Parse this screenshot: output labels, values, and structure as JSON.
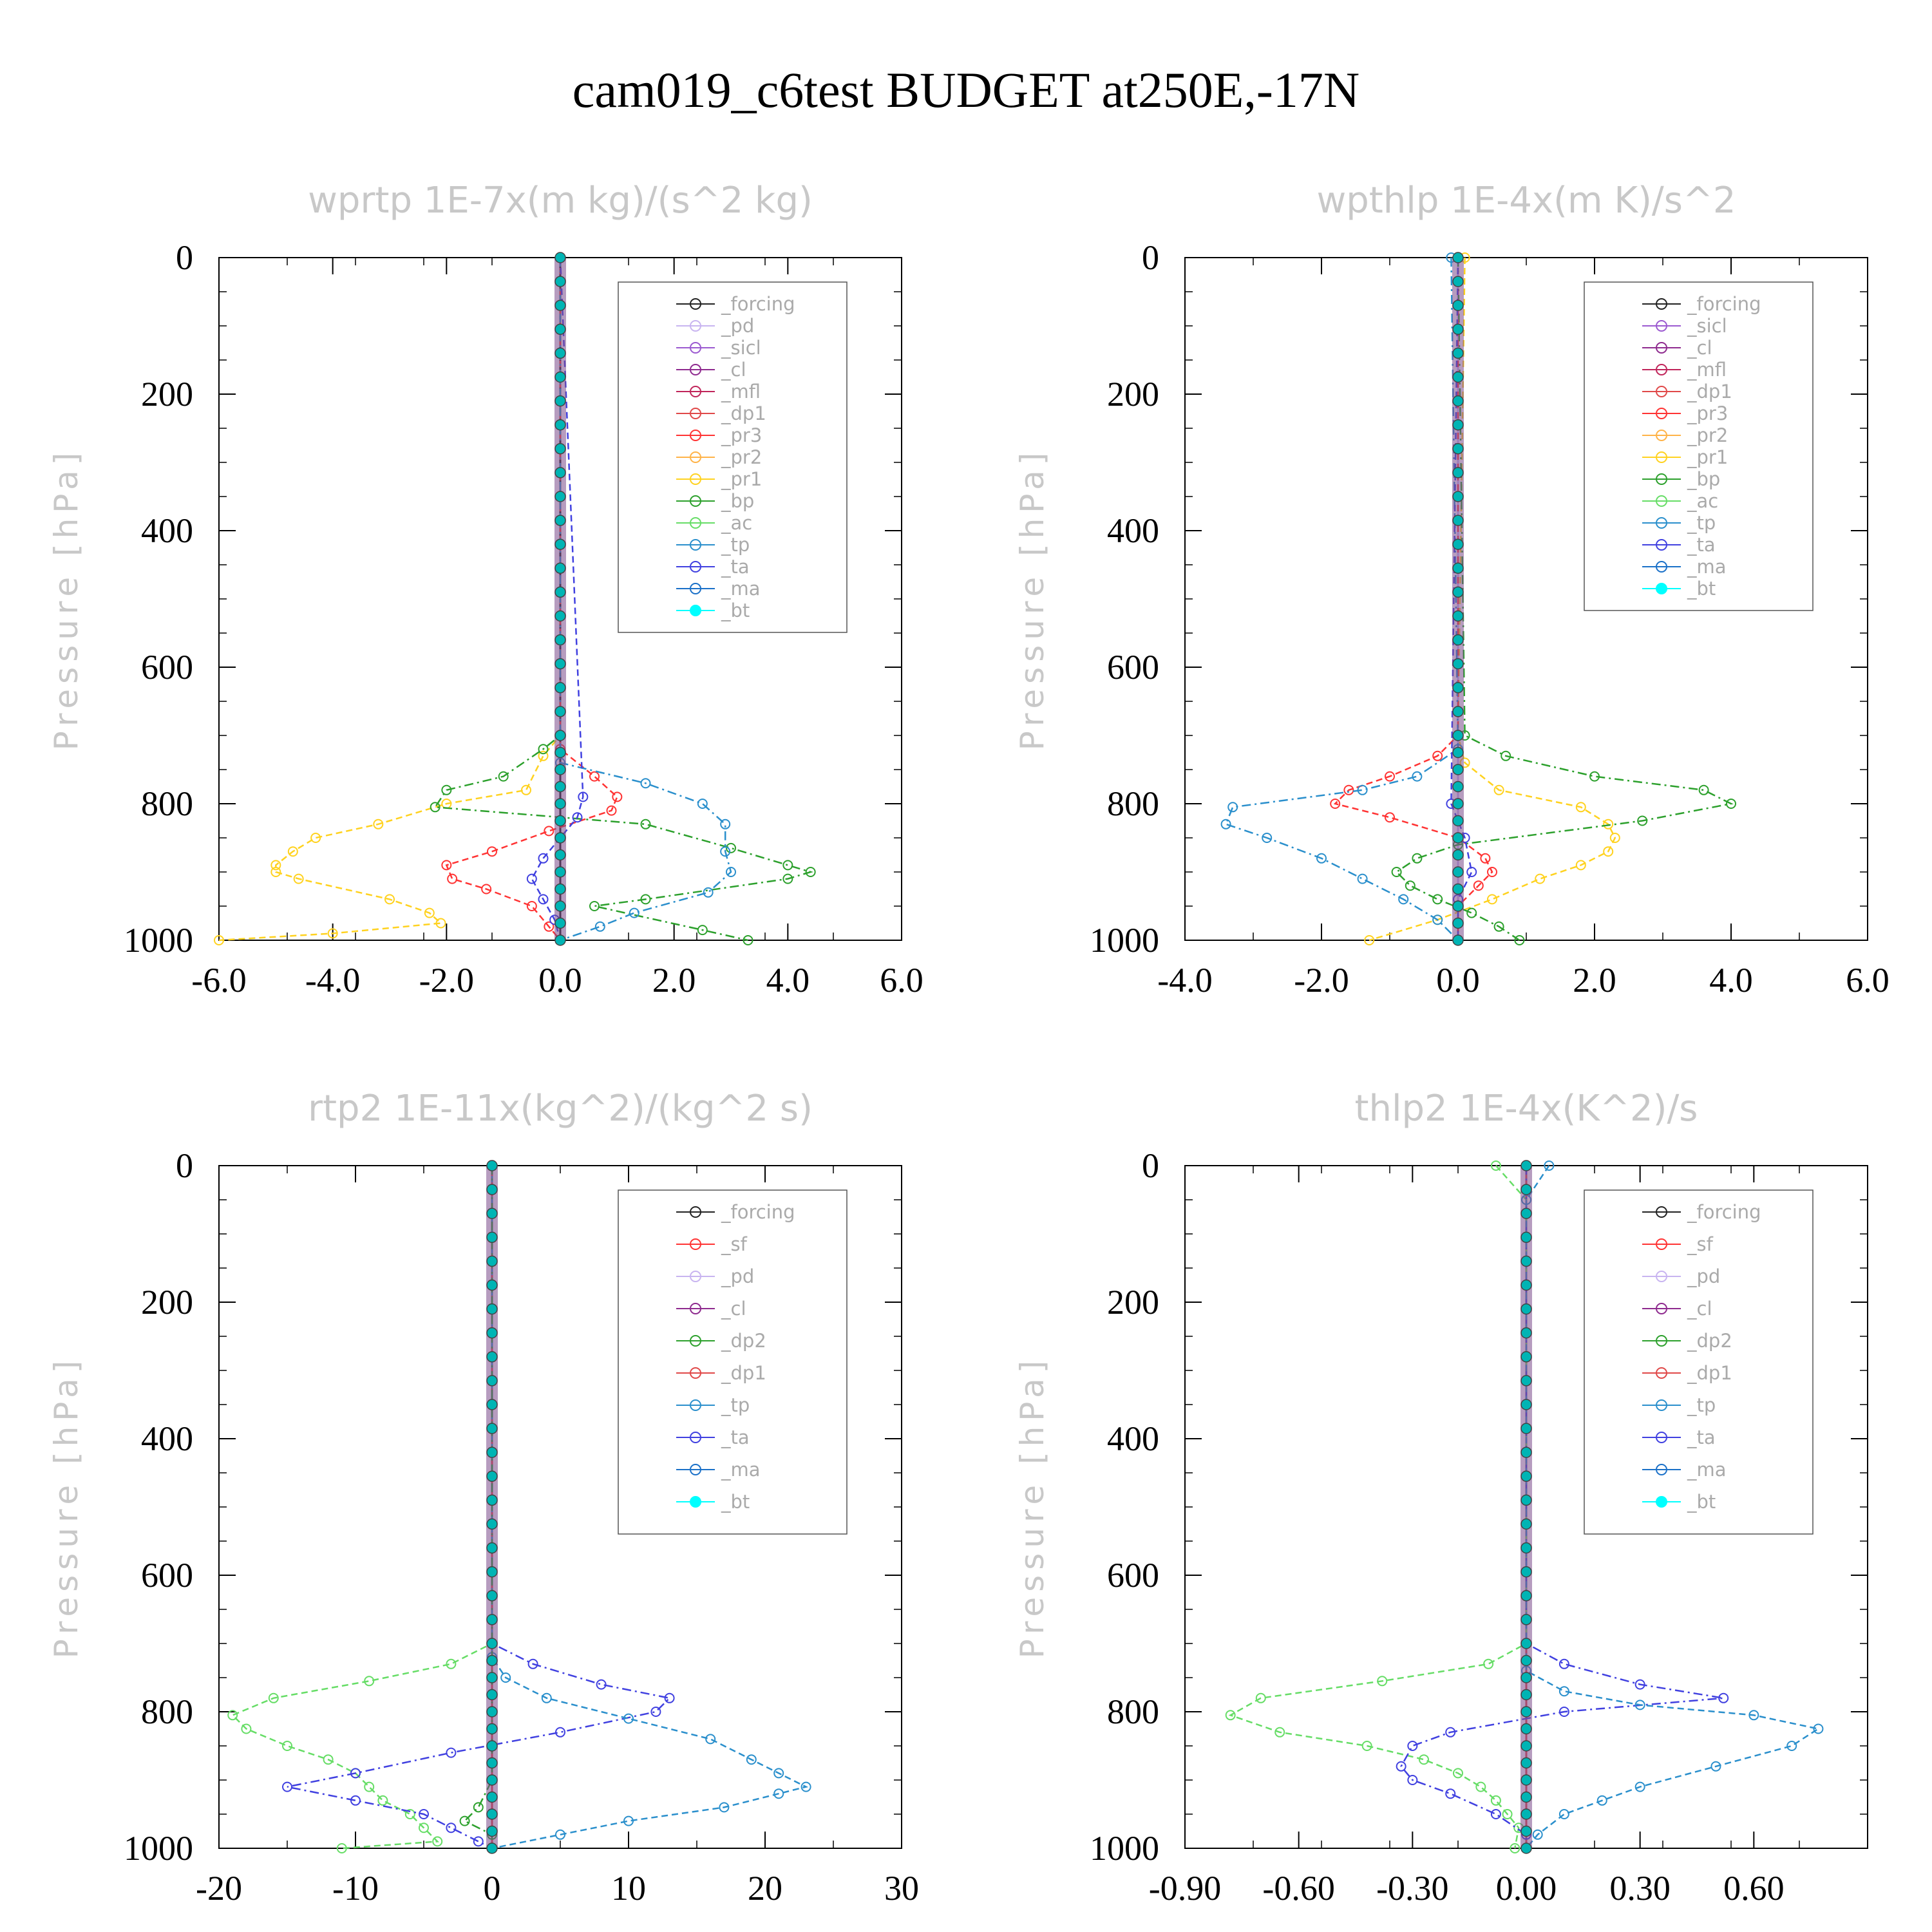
{
  "title": "cam019_c6test  BUDGET at250E,-17N",
  "colors": {
    "forcing": "#222222",
    "pd": "#c8b4f0",
    "sicl": "#9b59d0",
    "cl": "#8e2a8e",
    "mfl": "#c0245a",
    "dp1": "#e04848",
    "pr3": "#ff3333",
    "pr2": "#ffb347",
    "pr1": "#ffd21f",
    "bp": "#2ca02c",
    "ac": "#66dd66",
    "tp": "#2a8fcc",
    "ta": "#4040e0",
    "ma": "#1a70c8",
    "bt": "#00ffff",
    "sf": "#ff3333",
    "pd_y": "#ffb347",
    "cl_y": "#ffd21f",
    "dp2": "#2ca02c",
    "dp1_g": "#66dd66"
  },
  "chart_data": [
    {
      "type": "line",
      "title": "wprtp  1E-7x(m kg)/(s^2 kg)",
      "ylabel": "Pressure [hPa]",
      "xlim": [
        -6,
        6
      ],
      "ylim": [
        1000,
        0
      ],
      "xticks": [
        "-6.0",
        "-4.0",
        "-2.0",
        "0.0",
        "2.0",
        "4.0",
        "6.0"
      ],
      "yticks": [
        "0",
        "200",
        "400",
        "600",
        "800",
        "1000"
      ],
      "legend": [
        "_forcing",
        "_pd",
        "_sicl",
        "_cl",
        "_mfl",
        "_dp1",
        "_pr3",
        "_pr2",
        "_pr1",
        "_bp",
        "_ac",
        "_tp",
        "_ta",
        "_ma",
        "_bt"
      ],
      "series": [
        {
          "name": "_forcing",
          "color": "#222222",
          "y": [
            0,
            500,
            1000
          ],
          "x": [
            0,
            0,
            0
          ]
        },
        {
          "name": "_pr1",
          "color": "#ffd21f",
          "y": [
            0,
            700,
            730,
            780,
            800,
            830,
            850,
            870,
            890,
            900,
            910,
            940,
            960,
            975,
            990,
            1000
          ],
          "x": [
            0,
            0,
            -0.3,
            -0.6,
            -2.0,
            -3.2,
            -4.3,
            -4.7,
            -5.0,
            -5.0,
            -4.6,
            -3.0,
            -2.3,
            -2.1,
            -4.0,
            -6.0
          ]
        },
        {
          "name": "_bp",
          "color": "#2ca02c",
          "y": [
            0,
            700,
            720,
            760,
            780,
            805,
            830,
            865,
            890,
            900,
            910,
            940,
            950,
            985,
            1000
          ],
          "x": [
            0,
            0,
            -0.3,
            -1.0,
            -2.0,
            -2.2,
            1.5,
            3.0,
            4.0,
            4.4,
            4.0,
            1.5,
            0.6,
            2.5,
            3.3
          ]
        },
        {
          "name": "_pr3",
          "color": "#ff3333",
          "y": [
            0,
            720,
            760,
            790,
            810,
            840,
            870,
            890,
            910,
            925,
            950,
            980,
            1000
          ],
          "x": [
            0,
            0,
            0.6,
            1.0,
            0.9,
            -0.2,
            -1.2,
            -2.0,
            -1.9,
            -1.3,
            -0.5,
            -0.2,
            0
          ]
        },
        {
          "name": "_tp",
          "color": "#2a8fcc",
          "y": [
            0,
            740,
            770,
            800,
            830,
            870,
            900,
            930,
            960,
            980,
            1000
          ],
          "x": [
            0,
            0,
            1.5,
            2.5,
            2.9,
            2.9,
            3.0,
            2.6,
            1.3,
            0.7,
            0
          ]
        },
        {
          "name": "_ta",
          "color": "#4040e0",
          "y": [
            0,
            790,
            820,
            850,
            880,
            910,
            940,
            970,
            1000
          ],
          "x": [
            0,
            0.4,
            0.3,
            0.0,
            -0.3,
            -0.5,
            -0.3,
            -0.1,
            0
          ]
        }
      ]
    },
    {
      "type": "line",
      "title": "wpthlp  1E-4x(m K)/s^2",
      "ylabel": "Pressure [hPa]",
      "xlim": [
        -4,
        6
      ],
      "ylim": [
        1000,
        0
      ],
      "xticks": [
        "-4.0",
        "-2.0",
        "0.0",
        "2.0",
        "4.0",
        "6.0"
      ],
      "yticks": [
        "0",
        "200",
        "400",
        "600",
        "800",
        "1000"
      ],
      "legend": [
        "_forcing",
        "_sicl",
        "_cl",
        "_mfl",
        "_dp1",
        "_pr3",
        "_pr2",
        "_pr1",
        "_bp",
        "_ac",
        "_tp",
        "_ta",
        "_ma",
        "_bt"
      ],
      "series": [
        {
          "name": "_forcing",
          "color": "#c8b4f0",
          "y": [
            0,
            500,
            1000
          ],
          "x": [
            0,
            0,
            0
          ]
        },
        {
          "name": "_pr1",
          "color": "#ffd21f",
          "y": [
            0,
            700,
            740,
            780,
            805,
            830,
            850,
            870,
            890,
            910,
            940,
            970,
            1000
          ],
          "x": [
            0.1,
            0.0,
            0.1,
            0.6,
            1.8,
            2.2,
            2.3,
            2.2,
            1.8,
            1.2,
            0.5,
            -0.3,
            -1.3
          ]
        },
        {
          "name": "_bp",
          "color": "#2ca02c",
          "y": [
            0,
            700,
            730,
            760,
            780,
            800,
            825,
            860,
            880,
            900,
            920,
            940,
            960,
            980,
            1000
          ],
          "x": [
            0,
            0.1,
            0.7,
            2.0,
            3.6,
            4.0,
            2.7,
            0.0,
            -0.6,
            -0.9,
            -0.7,
            -0.3,
            0.2,
            0.6,
            0.9
          ]
        },
        {
          "name": "_pr3",
          "color": "#ff3333",
          "y": [
            0,
            700,
            730,
            760,
            780,
            800,
            820,
            850,
            880,
            900,
            920,
            950,
            1000
          ],
          "x": [
            0,
            0,
            -0.3,
            -1.0,
            -1.6,
            -1.8,
            -1.0,
            0.0,
            0.4,
            0.5,
            0.3,
            0.0,
            0
          ]
        },
        {
          "name": "_tp",
          "color": "#2a8fcc",
          "y": [
            0,
            720,
            760,
            780,
            805,
            830,
            850,
            880,
            910,
            940,
            970,
            1000
          ],
          "x": [
            -0.1,
            0,
            -0.6,
            -1.4,
            -3.3,
            -3.4,
            -2.8,
            -2.0,
            -1.4,
            -0.8,
            -0.3,
            0
          ]
        },
        {
          "name": "_ta",
          "color": "#4040e0",
          "y": [
            0,
            800,
            850,
            900,
            940,
            1000
          ],
          "x": [
            0,
            -0.1,
            0.1,
            0.2,
            0.0,
            0
          ]
        }
      ]
    },
    {
      "type": "line",
      "title": "rtp2  1E-11x(kg^2)/(kg^2 s)",
      "ylabel": "Pressure [hPa]",
      "xlim": [
        -20,
        30
      ],
      "ylim": [
        1000,
        0
      ],
      "xticks": [
        "-20",
        "-10",
        "0",
        "10",
        "20",
        "30"
      ],
      "yticks": [
        "0",
        "200",
        "400",
        "600",
        "800",
        "1000"
      ],
      "legend": [
        "_forcing",
        "_sf",
        "_pd",
        "_cl",
        "_dp2",
        "_dp1",
        "_tp",
        "_ta",
        "_ma",
        "_bt"
      ],
      "series": [
        {
          "name": "_forcing",
          "color": "#e04848",
          "y": [
            0,
            500,
            1000
          ],
          "x": [
            0,
            0,
            0
          ]
        },
        {
          "name": "_dp1",
          "color": "#66dd66",
          "y": [
            0,
            700,
            730,
            755,
            780,
            805,
            825,
            850,
            870,
            890,
            910,
            930,
            950,
            970,
            990,
            1000
          ],
          "x": [
            0,
            0,
            -3.0,
            -9.0,
            -16.0,
            -19.0,
            -18.0,
            -15.0,
            -12.0,
            -10.0,
            -9.0,
            -8.0,
            -6.0,
            -5.0,
            -4.0,
            -11.0
          ]
        },
        {
          "name": "_ta",
          "color": "#4040e0",
          "y": [
            0,
            700,
            730,
            760,
            780,
            800,
            830,
            860,
            890,
            910,
            930,
            950,
            970,
            990,
            1000
          ],
          "x": [
            0,
            0,
            3.0,
            8.0,
            13.0,
            12.0,
            5.0,
            -3.0,
            -10.0,
            -15.0,
            -10.0,
            -5.0,
            -3.0,
            -1.0,
            0
          ]
        },
        {
          "name": "_tp",
          "color": "#2a8fcc",
          "y": [
            0,
            720,
            750,
            780,
            810,
            840,
            870,
            890,
            910,
            920,
            940,
            960,
            980,
            1000
          ],
          "x": [
            0,
            0,
            1.0,
            4.0,
            10.0,
            16.0,
            19.0,
            21.0,
            23.0,
            21.0,
            17.0,
            10.0,
            5.0,
            0
          ]
        },
        {
          "name": "_dp2",
          "color": "#2ca02c",
          "y": [
            0,
            800,
            850,
            900,
            940,
            960,
            980,
            1000
          ],
          "x": [
            0,
            0,
            0,
            0,
            -1.0,
            -2.0,
            0,
            0
          ]
        }
      ]
    },
    {
      "type": "line",
      "title": "thlp2  1E-4x(K^2)/s",
      "ylabel": "Pressure [hPa]",
      "xlim": [
        -0.9,
        0.9
      ],
      "ylim": [
        1000,
        0
      ],
      "xticks": [
        "-0.90",
        "-0.60",
        "-0.30",
        "0.00",
        "0.30",
        "0.60"
      ],
      "yticks": [
        "0",
        "200",
        "400",
        "600",
        "800",
        "1000"
      ],
      "legend": [
        "_forcing",
        "_sf",
        "_pd",
        "_cl",
        "_dp2",
        "_dp1",
        "_tp",
        "_ta",
        "_ma",
        "_bt"
      ],
      "series": [
        {
          "name": "_forcing",
          "color": "#e04848",
          "y": [
            0,
            500,
            1000
          ],
          "x": [
            0,
            0,
            0
          ]
        },
        {
          "name": "_dp1",
          "color": "#66dd66",
          "y": [
            0,
            50,
            700,
            730,
            755,
            780,
            805,
            830,
            850,
            870,
            890,
            910,
            930,
            950,
            970,
            1000
          ],
          "x": [
            -0.08,
            0,
            0,
            -0.1,
            -0.38,
            -0.7,
            -0.78,
            -0.65,
            -0.42,
            -0.27,
            -0.18,
            -0.12,
            -0.08,
            -0.05,
            -0.02,
            -0.03
          ]
        },
        {
          "name": "_ta",
          "color": "#4040e0",
          "y": [
            0,
            700,
            730,
            760,
            780,
            800,
            830,
            850,
            880,
            900,
            920,
            950,
            980,
            1000
          ],
          "x": [
            0,
            0,
            0.1,
            0.3,
            0.52,
            0.1,
            -0.2,
            -0.3,
            -0.33,
            -0.3,
            -0.2,
            -0.08,
            0,
            0
          ]
        },
        {
          "name": "_tp",
          "color": "#2a8fcc",
          "y": [
            0,
            50,
            700,
            740,
            770,
            790,
            805,
            825,
            850,
            880,
            910,
            930,
            950,
            980,
            1000
          ],
          "x": [
            0.06,
            0,
            0,
            0.0,
            0.1,
            0.3,
            0.6,
            0.77,
            0.7,
            0.5,
            0.3,
            0.2,
            0.1,
            0.03,
            0
          ]
        }
      ]
    }
  ]
}
